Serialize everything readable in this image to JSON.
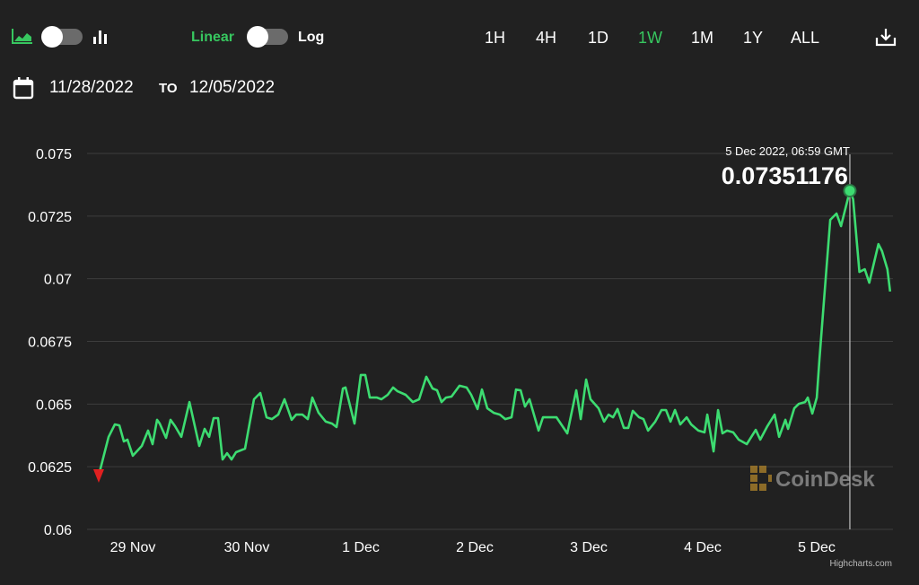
{
  "toolbar": {
    "chart_type_area_icon": "area-chart-icon",
    "chart_type_bar_icon": "bar-chart-icon",
    "scale_linear_label": "Linear",
    "scale_log_label": "Log",
    "ranges": [
      "1H",
      "4H",
      "1D",
      "1W",
      "1M",
      "1Y",
      "ALL"
    ],
    "active_range": "1W",
    "download_icon": "download-icon"
  },
  "date_range": {
    "calendar_icon": "calendar-icon",
    "from": "11/28/2022",
    "to_label": "TO",
    "to": "12/05/2022"
  },
  "tooltip": {
    "time": "5 Dec 2022, 06:59 GMT",
    "value": "0.07351176"
  },
  "watermark": "CoinDesk",
  "credits": "Highcharts.com",
  "colors": {
    "background": "#212121",
    "line": "#3ddc71",
    "accent": "#37c65f",
    "start_marker": "#e02020",
    "grid": "#3d3d3d",
    "watermark": "#a07a2a"
  },
  "chart_data": {
    "type": "line",
    "title": "",
    "xlabel": "",
    "ylabel": "",
    "ylim": [
      0.06,
      0.075
    ],
    "yticks": [
      "0.075",
      "0.0725",
      "0.07",
      "0.0675",
      "0.065",
      "0.0625",
      "0.06"
    ],
    "ytick_values": [
      0.075,
      0.0725,
      0.07,
      0.0675,
      0.065,
      0.0625,
      0.06
    ],
    "xticks": [
      "29 Nov",
      "30 Nov",
      "1 Dec",
      "2 Dec",
      "3 Dec",
      "4 Dec",
      "5 Dec"
    ],
    "xtick_times": [
      "2022-11-29 00:00",
      "2022-11-30 00:00",
      "2022-12-01 00:00",
      "2022-12-02 00:00",
      "2022-12-03 00:00",
      "2022-12-04 00:00",
      "2022-12-05 00:00"
    ],
    "grid": true,
    "legend": "none",
    "scale": "linear",
    "highlighted_point": {
      "time": "2022-12-05 06:59",
      "value": 0.07351176
    },
    "points": [
      [
        "2022-11-28 16:49",
        0.06215
      ],
      [
        "2022-11-28 18:54",
        0.06369
      ],
      [
        "2022-11-28 20:13",
        0.06419
      ],
      [
        "2022-11-28 21:10",
        0.06415
      ],
      [
        "2022-11-28 22:07",
        0.06351
      ],
      [
        "2022-11-28 22:52",
        0.06358
      ],
      [
        "2022-11-29 00:00",
        0.06294
      ],
      [
        "2022-11-29 01:53",
        0.06333
      ],
      [
        "2022-11-29 03:13",
        0.06394
      ],
      [
        "2022-11-29 04:10",
        0.0634
      ],
      [
        "2022-11-29 05:06",
        0.06437
      ],
      [
        "2022-11-29 05:40",
        0.06422
      ],
      [
        "2022-11-29 06:59",
        0.06365
      ],
      [
        "2022-11-29 07:56",
        0.06437
      ],
      [
        "2022-11-29 08:53",
        0.06412
      ],
      [
        "2022-11-29 10:12",
        0.06369
      ],
      [
        "2022-11-29 11:55",
        0.06508
      ],
      [
        "2022-11-29 13:59",
        0.06333
      ],
      [
        "2022-11-29 15:07",
        0.06401
      ],
      [
        "2022-11-29 16:04",
        0.06369
      ],
      [
        "2022-11-29 17:01",
        0.06444
      ],
      [
        "2022-11-29 17:57",
        0.06444
      ],
      [
        "2022-11-29 18:54",
        0.06279
      ],
      [
        "2022-11-29 19:51",
        0.06304
      ],
      [
        "2022-11-29 20:47",
        0.06279
      ],
      [
        "2022-11-29 21:44",
        0.06308
      ],
      [
        "2022-11-29 23:37",
        0.06322
      ],
      [
        "2022-11-30 01:31",
        0.06519
      ],
      [
        "2022-11-30 02:50",
        0.06544
      ],
      [
        "2022-11-30 04:10",
        0.06447
      ],
      [
        "2022-11-30 05:18",
        0.0644
      ],
      [
        "2022-11-30 06:37",
        0.06458
      ],
      [
        "2022-11-30 07:56",
        0.06519
      ],
      [
        "2022-11-30 09:27",
        0.06437
      ],
      [
        "2022-11-30 10:24",
        0.06458
      ],
      [
        "2022-11-30 11:43",
        0.06458
      ],
      [
        "2022-11-30 12:51",
        0.0644
      ],
      [
        "2022-11-30 13:48",
        0.06526
      ],
      [
        "2022-11-30 15:07",
        0.06465
      ],
      [
        "2022-11-30 16:38",
        0.0643
      ],
      [
        "2022-11-30 17:57",
        0.06422
      ],
      [
        "2022-11-30 18:54",
        0.06408
      ],
      [
        "2022-11-30 20:14",
        0.06562
      ],
      [
        "2022-11-30 20:47",
        0.06566
      ],
      [
        "2022-11-30 22:41",
        0.06422
      ],
      [
        "2022-12-01 00:00",
        0.06616
      ],
      [
        "2022-12-01 00:57",
        0.06616
      ],
      [
        "2022-12-01 01:53",
        0.06526
      ],
      [
        "2022-12-01 03:24",
        0.06526
      ],
      [
        "2022-12-01 04:21",
        0.06519
      ],
      [
        "2022-12-01 05:40",
        0.06537
      ],
      [
        "2022-12-01 06:48",
        0.06566
      ],
      [
        "2022-12-01 07:45",
        0.06551
      ],
      [
        "2022-12-01 09:27",
        0.06537
      ],
      [
        "2022-12-01 10:58",
        0.06508
      ],
      [
        "2022-12-01 12:17",
        0.06519
      ],
      [
        "2022-12-01 13:48",
        0.06609
      ],
      [
        "2022-12-01 15:07",
        0.06562
      ],
      [
        "2022-12-01 16:04",
        0.06555
      ],
      [
        "2022-12-01 17:01",
        0.06508
      ],
      [
        "2022-12-01 17:57",
        0.06526
      ],
      [
        "2022-12-01 19:06",
        0.0653
      ],
      [
        "2022-12-01 20:47",
        0.06573
      ],
      [
        "2022-12-01 22:18",
        0.06566
      ],
      [
        "2022-12-01 23:15",
        0.06537
      ],
      [
        "2022-12-02 00:35",
        0.0648
      ],
      [
        "2022-12-02 01:31",
        0.06558
      ],
      [
        "2022-12-02 02:39",
        0.06483
      ],
      [
        "2022-12-02 03:59",
        0.06465
      ],
      [
        "2022-12-02 05:18",
        0.06458
      ],
      [
        "2022-12-02 06:26",
        0.0644
      ],
      [
        "2022-12-02 07:45",
        0.06447
      ],
      [
        "2022-12-02 08:42",
        0.06558
      ],
      [
        "2022-12-02 09:39",
        0.06555
      ],
      [
        "2022-12-02 10:35",
        0.0649
      ],
      [
        "2022-12-02 11:32",
        0.06519
      ],
      [
        "2022-12-02 13:26",
        0.06394
      ],
      [
        "2022-12-02 14:22",
        0.06447
      ],
      [
        "2022-12-02 15:53",
        0.06447
      ],
      [
        "2022-12-02 17:13",
        0.06447
      ],
      [
        "2022-12-02 19:29",
        0.06383
      ],
      [
        "2022-12-02 21:22",
        0.06555
      ],
      [
        "2022-12-02 22:19",
        0.0644
      ],
      [
        "2022-12-02 23:27",
        0.06598
      ],
      [
        "2022-12-03 00:23",
        0.06519
      ],
      [
        "2022-12-03 02:05",
        0.06483
      ],
      [
        "2022-12-03 03:14",
        0.0643
      ],
      [
        "2022-12-03 04:11",
        0.06458
      ],
      [
        "2022-12-03 05:07",
        0.06447
      ],
      [
        "2022-12-03 06:04",
        0.0648
      ],
      [
        "2022-12-03 07:23",
        0.06405
      ],
      [
        "2022-12-03 08:20",
        0.06405
      ],
      [
        "2022-12-03 09:17",
        0.06473
      ],
      [
        "2022-12-03 10:36",
        0.06447
      ],
      [
        "2022-12-03 11:32",
        0.0644
      ],
      [
        "2022-12-03 12:29",
        0.06394
      ],
      [
        "2022-12-03 14:00",
        0.0643
      ],
      [
        "2022-12-03 15:19",
        0.06476
      ],
      [
        "2022-12-03 16:16",
        0.06476
      ],
      [
        "2022-12-03 17:13",
        0.0643
      ],
      [
        "2022-12-03 18:10",
        0.06476
      ],
      [
        "2022-12-03 19:17",
        0.06419
      ],
      [
        "2022-12-03 20:37",
        0.06447
      ],
      [
        "2022-12-03 21:34",
        0.06419
      ],
      [
        "2022-12-03 23:04",
        0.06394
      ],
      [
        "2022-12-04 00:23",
        0.06387
      ],
      [
        "2022-12-04 00:58",
        0.06458
      ],
      [
        "2022-12-04 02:17",
        0.06311
      ],
      [
        "2022-12-04 03:14",
        0.06476
      ],
      [
        "2022-12-04 04:10",
        0.06383
      ],
      [
        "2022-12-04 05:07",
        0.06394
      ],
      [
        "2022-12-04 06:26",
        0.06387
      ],
      [
        "2022-12-04 07:35",
        0.06358
      ],
      [
        "2022-12-04 09:17",
        0.0634
      ],
      [
        "2022-12-04 11:10",
        0.06397
      ],
      [
        "2022-12-04 12:07",
        0.06358
      ],
      [
        "2022-12-04 13:37",
        0.06412
      ],
      [
        "2022-12-04 15:08",
        0.06458
      ],
      [
        "2022-12-04 16:05",
        0.06369
      ],
      [
        "2022-12-04 17:24",
        0.06437
      ],
      [
        "2022-12-04 17:58",
        0.06401
      ],
      [
        "2022-12-04 19:17",
        0.06483
      ],
      [
        "2022-12-04 20:14",
        0.06501
      ],
      [
        "2022-12-04 21:34",
        0.06508
      ],
      [
        "2022-12-04 22:08",
        0.06526
      ],
      [
        "2022-12-04 23:04",
        0.06462
      ],
      [
        "2022-12-05 00:01",
        0.06526
      ],
      [
        "2022-12-05 00:35",
        0.0668
      ],
      [
        "2022-12-05 01:20",
        0.06866
      ],
      [
        "2022-12-05 02:51",
        0.07235
      ],
      [
        "2022-12-05 04:11",
        0.0726
      ],
      [
        "2022-12-05 05:07",
        0.0721
      ],
      [
        "2022-12-05 06:59",
        0.07351176
      ],
      [
        "2022-12-05 07:40",
        0.07317
      ],
      [
        "2022-12-05 09:00",
        0.07027
      ],
      [
        "2022-12-05 10:08",
        0.07038
      ],
      [
        "2022-12-05 11:05",
        0.06984
      ],
      [
        "2022-12-05 13:00",
        0.07138
      ],
      [
        "2022-12-05 13:45",
        0.0711
      ],
      [
        "2022-12-05 14:53",
        0.07038
      ],
      [
        "2022-12-05 15:27",
        0.06949
      ]
    ]
  }
}
